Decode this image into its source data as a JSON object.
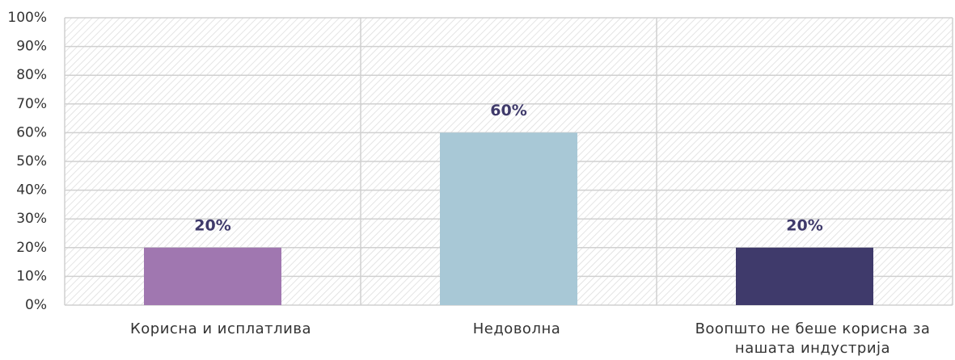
{
  "chart_data": {
    "type": "bar",
    "categories": [
      "Корисна и исплатлива",
      "Недоволна",
      "Воопшто не беше корисна за нашата индустрија"
    ],
    "values": [
      20,
      60,
      20
    ],
    "value_labels": [
      "20%",
      "60%",
      "20%"
    ],
    "colors": [
      "#a077b0",
      "#a8c8d6",
      "#3f3a6b"
    ],
    "ylim": [
      0,
      100
    ],
    "yticks": [
      {
        "value": 0,
        "label": "0%"
      },
      {
        "value": 10,
        "label": "10%"
      },
      {
        "value": 20,
        "label": "20%"
      },
      {
        "value": 30,
        "label": "30%"
      },
      {
        "value": 40,
        "label": "40%"
      },
      {
        "value": 50,
        "label": "50%"
      },
      {
        "value": 60,
        "label": "60%"
      },
      {
        "value": 70,
        "label": "70%"
      },
      {
        "value": 80,
        "label": "80%"
      },
      {
        "value": 90,
        "label": "90%"
      },
      {
        "value": 100,
        "label": "100%"
      }
    ],
    "grid": true
  }
}
